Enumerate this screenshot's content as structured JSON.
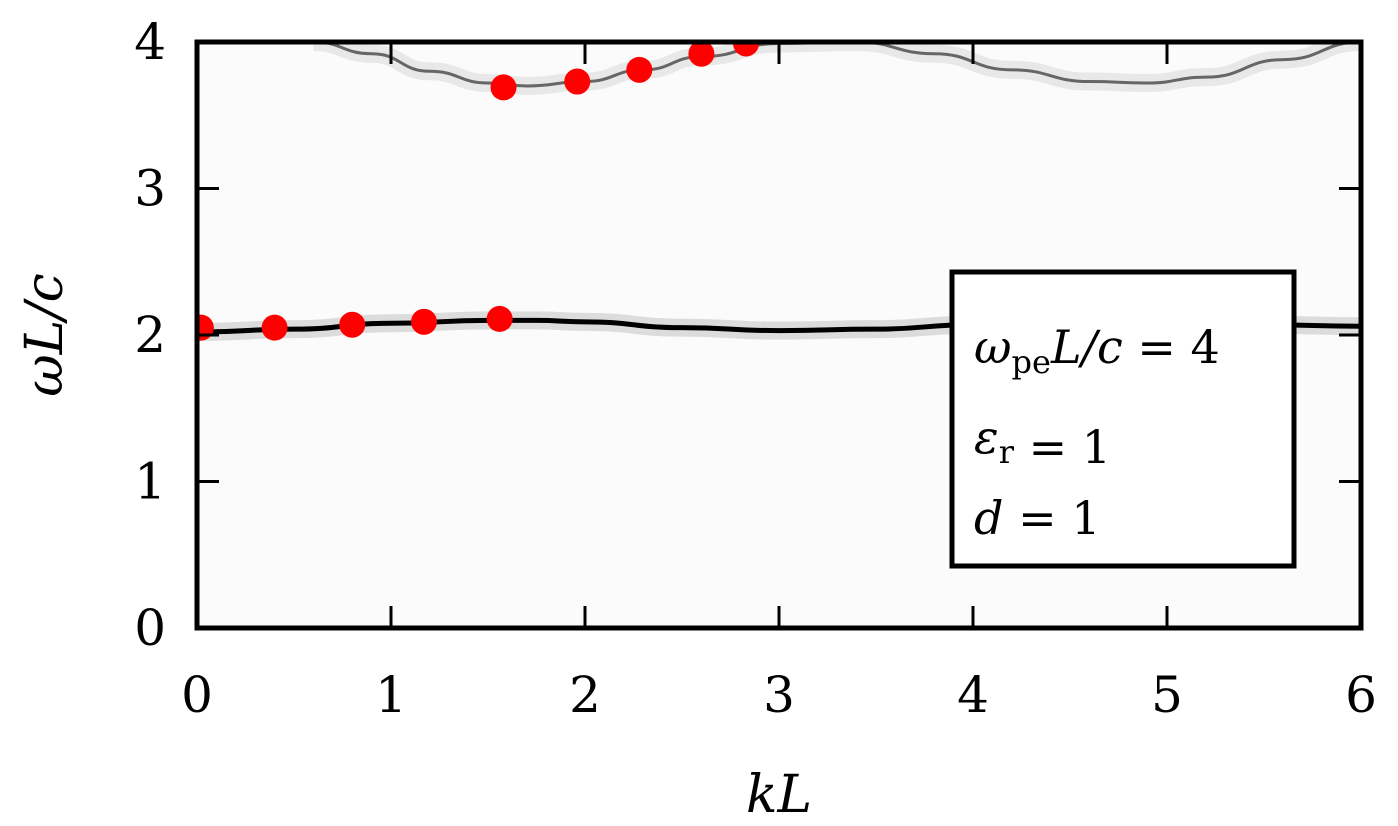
{
  "chart_data": {
    "type": "scatter",
    "xlabel": "kL",
    "ylabel": "ωL/c",
    "xlim": [
      0,
      6
    ],
    "ylim": [
      0,
      4
    ],
    "xticks": [
      "0",
      "1",
      "2",
      "3",
      "4",
      "5",
      "6"
    ],
    "yticks": [
      "0",
      "1",
      "2",
      "3",
      "4"
    ],
    "grid": false,
    "background": "grayscale spectral intensity map",
    "bands": [
      {
        "x": [
          0,
          0.5,
          1.0,
          1.5,
          1.75,
          2.0,
          2.5,
          3.0,
          3.5,
          4.0,
          4.5,
          5.0,
          5.5,
          6.0
        ],
        "y": [
          2.02,
          2.04,
          2.08,
          2.1,
          2.1,
          2.09,
          2.05,
          2.03,
          2.04,
          2.07,
          2.08,
          2.08,
          2.07,
          2.06
        ],
        "color": "#000000"
      },
      {
        "x": [
          0.6,
          0.9,
          1.2,
          1.5,
          1.7,
          2.0,
          2.3,
          2.6,
          3.0,
          3.4,
          3.8,
          4.2,
          4.6,
          4.9,
          5.2,
          5.6,
          6.0
        ],
        "y": [
          4.0,
          3.92,
          3.8,
          3.72,
          3.7,
          3.73,
          3.81,
          3.9,
          3.99,
          4.0,
          3.92,
          3.81,
          3.73,
          3.72,
          3.76,
          3.88,
          4.0
        ],
        "color": "#666666"
      }
    ],
    "points": [
      {
        "x": [
          0.02,
          0.4,
          0.8,
          1.17,
          1.56,
          1.58,
          1.96,
          2.28,
          2.6,
          2.83
        ],
        "y": [
          2.05,
          2.05,
          2.07,
          2.09,
          2.11,
          3.69,
          3.73,
          3.81,
          3.92,
          3.99
        ],
        "color": "#ff0000"
      }
    ],
    "legend": {
      "placement": "right",
      "lines": [
        {
          "sym": "ω",
          "sub": "pe",
          "rest": "L/c",
          "eq": " = 4"
        },
        {
          "sym": "ε",
          "sub": "r",
          "rest": "",
          "eq": " = 1"
        },
        {
          "sym": "d",
          "sub": "",
          "rest": "",
          "eq": " = 1"
        }
      ]
    }
  }
}
